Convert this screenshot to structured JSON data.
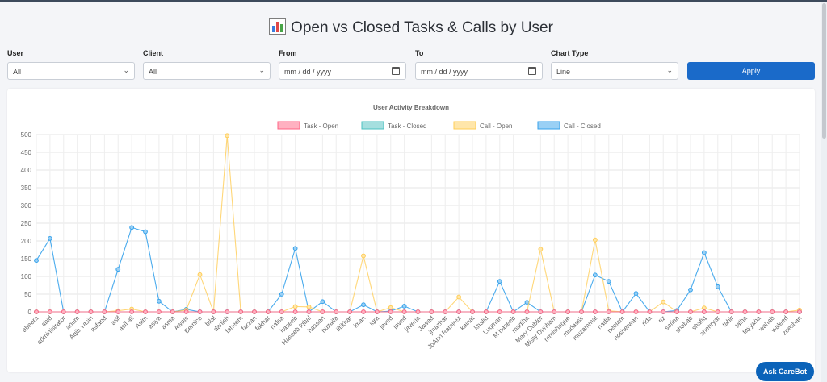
{
  "page": {
    "title": "Open vs Closed Tasks & Calls by User",
    "title_icon": "bar-chart-icon"
  },
  "filters": {
    "user": {
      "label": "User",
      "value": "All"
    },
    "client": {
      "label": "Client",
      "value": "All"
    },
    "from": {
      "label": "From",
      "placeholder": "mm / dd / yyyy"
    },
    "to": {
      "label": "To",
      "placeholder": "mm / dd / yyyy"
    },
    "chart_type": {
      "label": "Chart Type",
      "value": "Line"
    },
    "apply_label": "Apply"
  },
  "carebot_label": "Ask CareBot",
  "colors": {
    "accent": "#1a6ac9",
    "task_open": "#ff6384",
    "task_closed": "#4bc0c0",
    "call_open": "#ffcd56",
    "call_closed": "#36a2eb"
  },
  "chart_data": {
    "type": "line",
    "title": "User Activity Breakdown",
    "legend_position": "top",
    "grid": true,
    "ylim": [
      0,
      500
    ],
    "yticks": [
      0,
      50,
      100,
      150,
      200,
      250,
      300,
      350,
      400,
      450,
      500
    ],
    "categories": [
      "abeera",
      "abid",
      "administrator",
      "anum",
      "Aqib Yasin",
      "asfand",
      "asif",
      "asif ali",
      "Asim",
      "asiya",
      "asma",
      "Awais",
      "Bernice",
      "bilal",
      "danish",
      "faheem",
      "farzan",
      "fakhar",
      "hafsa",
      "haseeb",
      "Haseeb Iqbal",
      "hassan",
      "huzaifa",
      "iftikhar",
      "iman",
      "iqra",
      "javed",
      "javed",
      "javeria",
      "Jawad",
      "jmazhar",
      "JoAnn Ramirez",
      "kainat",
      "khalid",
      "Luqman",
      "M haseeb",
      "madiha",
      "Mary Dubler",
      "Misty Dunham",
      "mmishaque",
      "mudassir",
      "muzammal",
      "nadia",
      "neelam",
      "nosherwan",
      "rida",
      "riz",
      "safina",
      "shabab",
      "shafiq",
      "shehryar",
      "tahir",
      "talha",
      "tayyaba",
      "wahab",
      "waleed",
      "zeeshan"
    ],
    "series": [
      {
        "name": "Task - Open",
        "color": "#ff6384",
        "fill": "#ffb1c1",
        "values": [
          0,
          0,
          0,
          0,
          0,
          0,
          0,
          0,
          0,
          0,
          0,
          0,
          0,
          0,
          0,
          0,
          0,
          0,
          0,
          0,
          0,
          0,
          0,
          0,
          0,
          0,
          0,
          0,
          0,
          0,
          0,
          0,
          0,
          0,
          0,
          0,
          0,
          0,
          0,
          0,
          0,
          0,
          0,
          0,
          0,
          0,
          0,
          0,
          0,
          0,
          0,
          0,
          0,
          0,
          0,
          0,
          0
        ]
      },
      {
        "name": "Task - Closed",
        "color": "#4bc0c0",
        "fill": "#a5dfdf",
        "values": [
          0,
          0,
          0,
          0,
          0,
          0,
          0,
          0,
          0,
          0,
          0,
          0,
          0,
          0,
          0,
          0,
          0,
          0,
          0,
          0,
          0,
          0,
          0,
          0,
          0,
          0,
          0,
          0,
          0,
          0,
          0,
          0,
          0,
          0,
          0,
          0,
          0,
          0,
          0,
          0,
          0,
          0,
          0,
          0,
          0,
          0,
          0,
          0,
          0,
          0,
          0,
          0,
          0,
          0,
          0,
          0,
          0
        ]
      },
      {
        "name": "Call - Open",
        "color": "#ffcd56",
        "fill": "#ffe6aa",
        "values": [
          0,
          0,
          0,
          0,
          0,
          0,
          3,
          8,
          0,
          0,
          0,
          5,
          105,
          0,
          497,
          0,
          0,
          0,
          0,
          15,
          14,
          0,
          0,
          0,
          158,
          0,
          12,
          0,
          0,
          0,
          0,
          42,
          0,
          0,
          0,
          0,
          0,
          177,
          0,
          0,
          0,
          203,
          3,
          0,
          0,
          0,
          28,
          0,
          0,
          11,
          0,
          0,
          0,
          0,
          0,
          0,
          5
        ]
      },
      {
        "name": "Call - Closed",
        "color": "#36a2eb",
        "fill": "#9ad0f5",
        "values": [
          145,
          207,
          0,
          0,
          0,
          0,
          120,
          238,
          226,
          30,
          0,
          7,
          0,
          0,
          0,
          0,
          0,
          0,
          50,
          179,
          0,
          29,
          0,
          0,
          20,
          0,
          2,
          16,
          0,
          0,
          0,
          0,
          0,
          0,
          86,
          0,
          27,
          0,
          0,
          0,
          0,
          104,
          86,
          0,
          52,
          0,
          0,
          4,
          62,
          167,
          71,
          0,
          0,
          0,
          0,
          0,
          0
        ]
      }
    ]
  }
}
